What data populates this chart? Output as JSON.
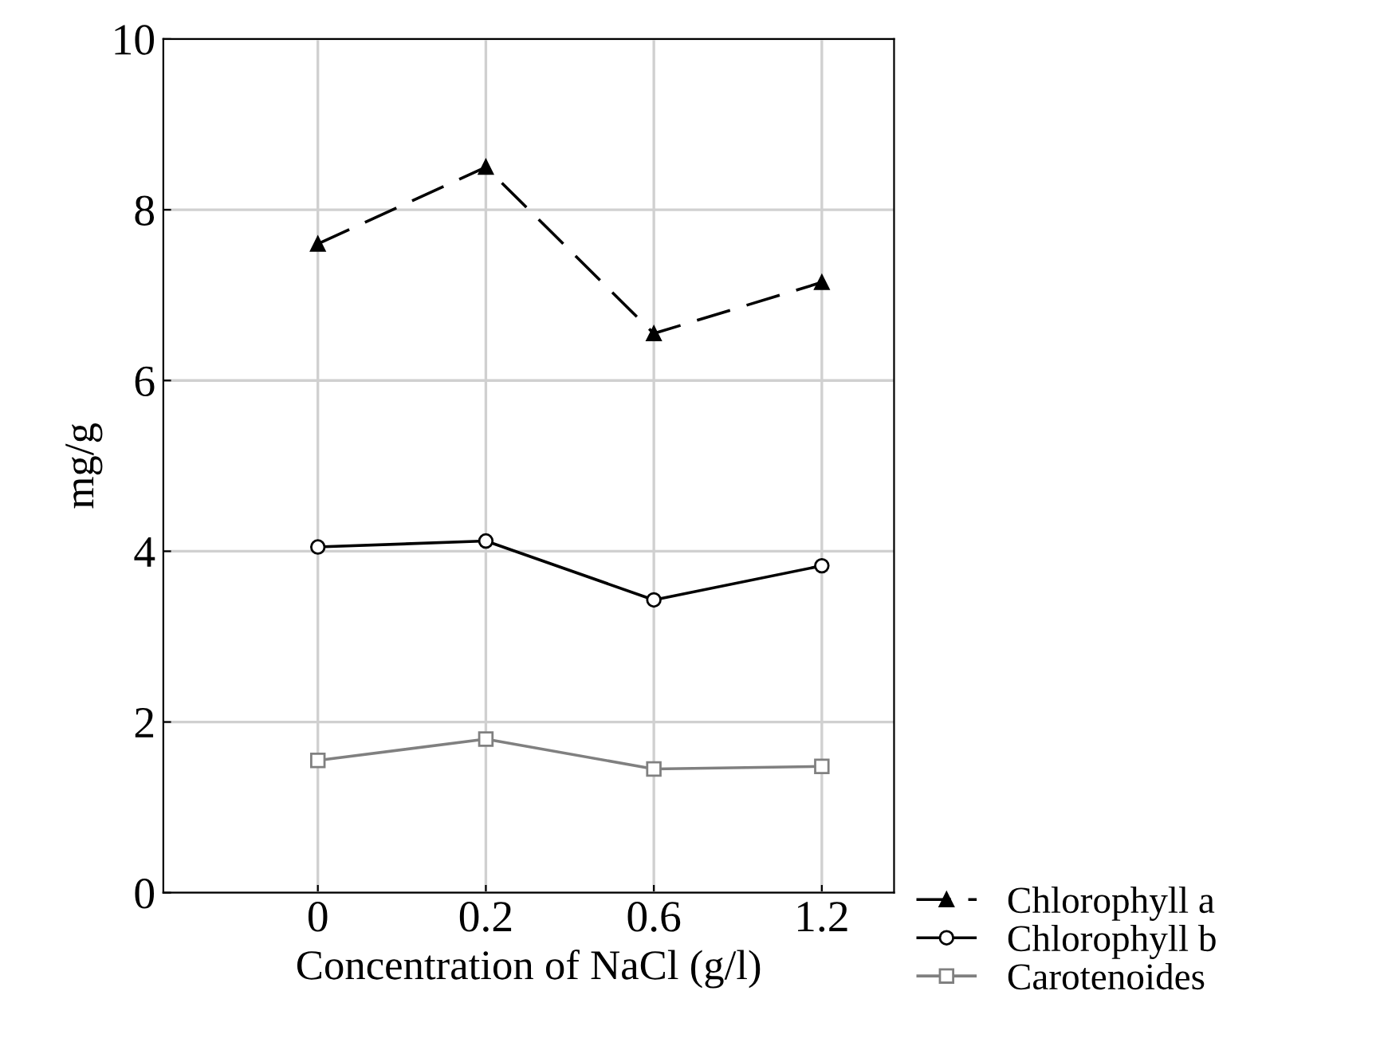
{
  "chart_data": {
    "type": "line",
    "xlabel": "Concentration of NaCl (g/l)",
    "ylabel": "mg/g",
    "categories": [
      "0",
      "0.2",
      "0.6",
      "1.2"
    ],
    "series": [
      {
        "name": "Chlorophyll a",
        "color": "#000000",
        "values": [
          7.6,
          8.5,
          6.55,
          7.15
        ],
        "marker": "triangle",
        "line_style": "dashed"
      },
      {
        "name": "Chlorophyll b",
        "color": "#000000",
        "values": [
          4.05,
          4.12,
          3.43,
          3.83
        ],
        "marker": "circle",
        "line_style": "solid"
      },
      {
        "name": "Carotenoides",
        "color": "#808080",
        "values": [
          1.55,
          1.8,
          1.45,
          1.48
        ],
        "marker": "square",
        "line_style": "solid"
      }
    ],
    "ylim": [
      0,
      10
    ],
    "yticks": [
      0,
      2,
      4,
      6,
      8,
      10
    ],
    "grid": true,
    "legend": "bottom right"
  }
}
